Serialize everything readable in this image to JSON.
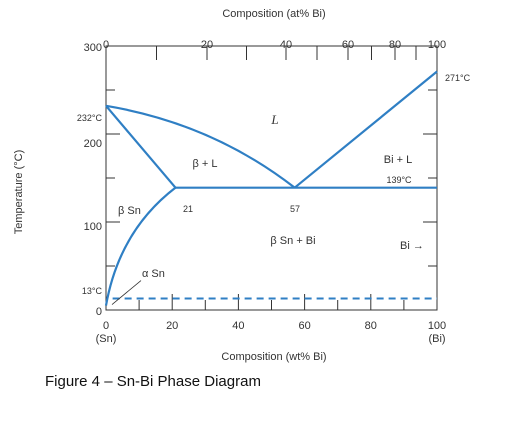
{
  "top_axis": {
    "title": "Composition (at% Bi)",
    "ticks": [
      {
        "label": "0",
        "v": 0
      },
      {
        "label": "20",
        "v": 20
      },
      {
        "label": "40",
        "v": 40
      },
      {
        "label": "60",
        "v": 60
      },
      {
        "label": "80",
        "v": 80
      },
      {
        "label": "100",
        "v": 100
      }
    ]
  },
  "bottom_axis": {
    "title": "Composition (wt% Bi)",
    "ticks": [
      {
        "label": "0",
        "v": 0
      },
      {
        "label": "20",
        "v": 20
      },
      {
        "label": "40",
        "v": 40
      },
      {
        "label": "60",
        "v": 60
      },
      {
        "label": "80",
        "v": 80
      },
      {
        "label": "100",
        "v": 100
      }
    ],
    "end_labels": {
      "left": "(Sn)",
      "right": "(Bi)"
    }
  },
  "y_axis": {
    "title": "Temperature (°C)",
    "range": [
      0,
      300
    ],
    "ticks": [
      {
        "label": "300",
        "v": 300
      },
      {
        "label": "200",
        "v": 200
      },
      {
        "label": "100",
        "v": 100
      },
      {
        "label": "0",
        "v": 0
      }
    ],
    "special_ticks": [
      {
        "label": "232°C",
        "v": 232
      },
      {
        "label": "13°C",
        "v": 13
      }
    ]
  },
  "right_label": {
    "text": "271°C",
    "v": 271
  },
  "phase_labels": {
    "liquid": "L",
    "beta_plus_l": "β + L",
    "bi_plus_l": "Bi + L",
    "beta_sn": "β Sn",
    "beta_sn_plus_bi": "β Sn + Bi",
    "alpha_sn": "α Sn",
    "bi_arrow": "Bi →"
  },
  "points": {
    "eutectic_temp": "139°C",
    "solubility_limit": "21",
    "eutectic_comp": "57"
  },
  "caption": "Figure 4 – Sn-Bi Phase Diagram",
  "colors": {
    "line": "#2f7fc4",
    "axis": "#333333",
    "text": "#333333"
  }
}
